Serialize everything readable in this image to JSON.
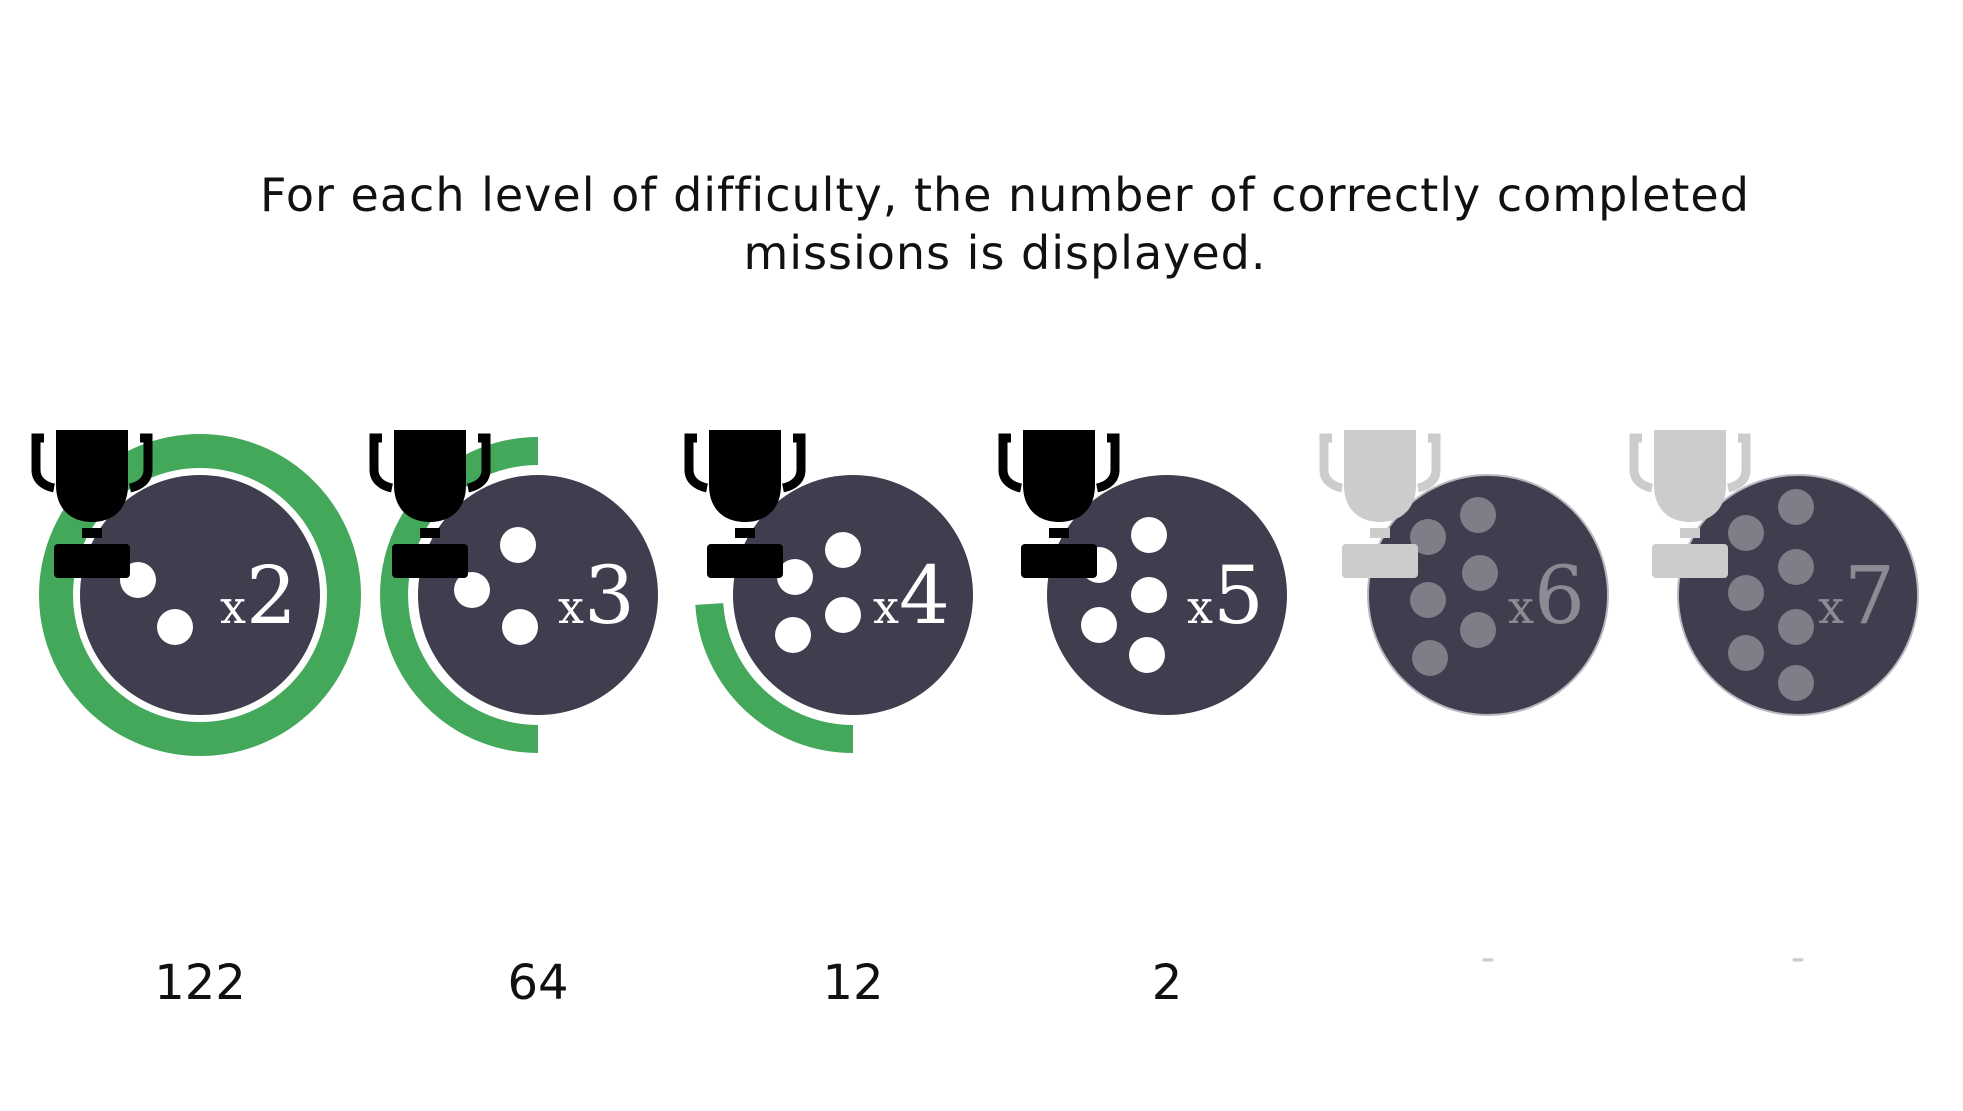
{
  "caption": {
    "line1": "For each level of difficulty, the number of correctly completed",
    "line2": "missions is displayed."
  },
  "colors": {
    "badge": "#403e4e",
    "progress": "#44a85b",
    "dot_unlocked": "#ffffff",
    "dot_locked": "#7f7d88",
    "multiplier_locked": "#8c8a93",
    "trophy_unlocked": "#000000",
    "trophy_locked": "#cccccc"
  },
  "levels": [
    {
      "multiplier": "x2",
      "dots": 2,
      "count": "122",
      "progress": 1.0,
      "unlocked": true,
      "trophy_icon": "trophy-icon"
    },
    {
      "multiplier": "x3",
      "dots": 3,
      "count": "64",
      "progress": 0.5,
      "unlocked": true,
      "trophy_icon": "trophy-icon"
    },
    {
      "multiplier": "x4",
      "dots": 4,
      "count": "12",
      "progress": 0.24,
      "unlocked": true,
      "trophy_icon": "trophy-icon"
    },
    {
      "multiplier": "x5",
      "dots": 5,
      "count": "2",
      "progress": 0,
      "unlocked": true,
      "trophy_icon": "trophy-icon"
    },
    {
      "multiplier": "x6",
      "dots": 6,
      "count": "-",
      "progress": 0,
      "unlocked": false,
      "trophy_icon": "trophy-icon"
    },
    {
      "multiplier": "x7",
      "dots": 7,
      "count": "-",
      "progress": 0,
      "unlocked": false,
      "trophy_icon": "trophy-icon"
    }
  ]
}
